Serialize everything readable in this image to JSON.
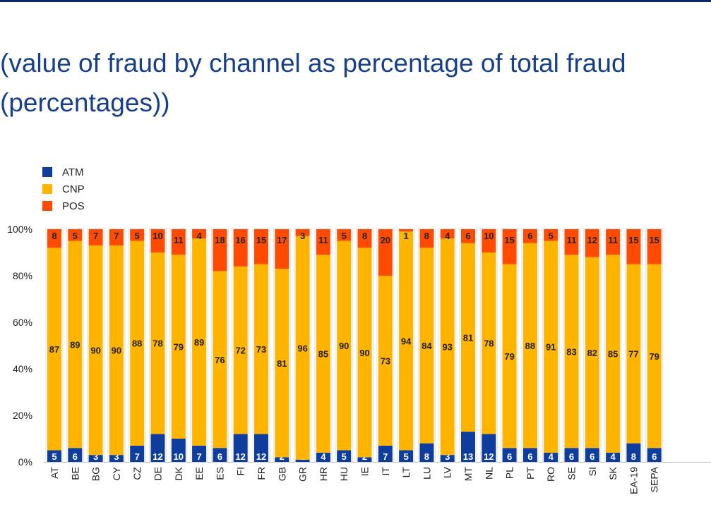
{
  "title_line1": "(value of fraud by channel as percentage of total fraud",
  "title_line2": "(percentages))",
  "chart_data": {
    "type": "bar",
    "stacked": true,
    "title": "(value of fraud by channel as percentage of total fraud (percentages))",
    "xlabel": "",
    "ylabel": "",
    "ylim": [
      0,
      100
    ],
    "yticks": [
      "0%",
      "20%",
      "40%",
      "60%",
      "80%",
      "100%"
    ],
    "legend_position": "top-left",
    "categories": [
      "AT",
      "BE",
      "BG",
      "CY",
      "CZ",
      "DE",
      "DK",
      "EE",
      "ES",
      "FI",
      "FR",
      "GB",
      "GR",
      "HR",
      "HU",
      "IE",
      "IT",
      "LT",
      "LU",
      "LV",
      "MT",
      "NL",
      "PL",
      "PT",
      "RO",
      "SE",
      "SI",
      "SK",
      "EA-19",
      "SEPA"
    ],
    "series": [
      {
        "name": "ATM",
        "color": "#0f3d9e",
        "values": [
          5,
          6,
          3,
          3,
          7,
          12,
          10,
          7,
          6,
          12,
          12,
          2,
          1,
          4,
          5,
          2,
          7,
          5,
          8,
          3,
          13,
          12,
          6,
          6,
          4,
          6,
          6,
          4,
          8,
          6
        ]
      },
      {
        "name": "CNP",
        "color": "#ffb400",
        "values": [
          87,
          89,
          90,
          90,
          88,
          78,
          79,
          89,
          76,
          72,
          73,
          81,
          96,
          85,
          90,
          90,
          73,
          94,
          84,
          93,
          81,
          78,
          79,
          88,
          91,
          83,
          82,
          85,
          77,
          79
        ]
      },
      {
        "name": "POS",
        "color": "#ff4b00",
        "values": [
          8,
          5,
          7,
          7,
          5,
          10,
          11,
          4,
          18,
          16,
          15,
          17,
          3,
          11,
          5,
          8,
          20,
          1,
          8,
          4,
          6,
          10,
          15,
          6,
          5,
          11,
          12,
          11,
          15,
          15
        ]
      }
    ]
  }
}
